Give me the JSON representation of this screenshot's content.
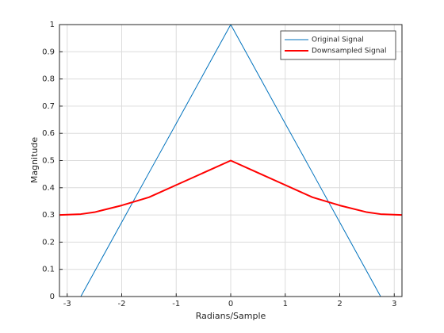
{
  "chart_data": {
    "type": "line",
    "x_label": "Radians/Sample",
    "y_label": "Magnitude",
    "x": [
      -3.1416,
      -2.75,
      -2.5,
      -2,
      -1.5,
      -1,
      -0.5,
      0,
      0.5,
      1,
      1.5,
      2,
      2.5,
      2.75,
      3.1416
    ],
    "series": [
      {
        "name": "Original Signal",
        "color": "#0072bd",
        "width": 1,
        "values": [
          0,
          0,
          0.091,
          0.273,
          0.455,
          0.636,
          0.818,
          1,
          0.818,
          0.636,
          0.455,
          0.273,
          0.091,
          0,
          0
        ]
      },
      {
        "name": "Downsampled Signal",
        "color": "#ff0000",
        "width": 2,
        "values": [
          0.3,
          0.303,
          0.31,
          0.335,
          0.365,
          0.41,
          0.455,
          0.5,
          0.455,
          0.41,
          0.365,
          0.335,
          0.31,
          0.303,
          0.3
        ]
      }
    ],
    "xlim": [
      -3.1416,
      3.1416
    ],
    "xticks": [
      -3,
      -2,
      -1,
      0,
      1,
      2,
      3
    ],
    "ylim": [
      0,
      1
    ],
    "yticks": [
      0,
      0.1,
      0.2,
      0.3,
      0.4,
      0.5,
      0.6,
      0.7,
      0.8,
      0.9,
      1
    ],
    "grid": true,
    "legend": "northeast"
  }
}
